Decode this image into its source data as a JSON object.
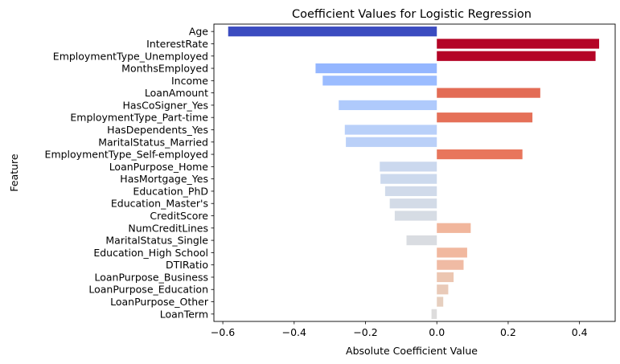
{
  "chart_data": {
    "type": "bar",
    "orientation": "horizontal",
    "title": "Coefficient Values for Logistic Regression",
    "xlabel": "Absolute Coefficient Value",
    "ylabel": "Feature",
    "xlim": [
      -0.625,
      0.5
    ],
    "xticks": [
      -0.6,
      -0.4,
      -0.2,
      0.0,
      0.2,
      0.4
    ],
    "xtick_labels": [
      "−0.6",
      "−0.4",
      "−0.2",
      "0.0",
      "0.2",
      "0.4"
    ],
    "grid": false,
    "colormap": "coolwarm",
    "categories": [
      "Age",
      "InterestRate",
      "EmploymentType_Unemployed",
      "MonthsEmployed",
      "Income",
      "LoanAmount",
      "HasCoSigner_Yes",
      "EmploymentType_Part-time",
      "HasDependents_Yes",
      "MaritalStatus_Married",
      "EmploymentType_Self-employed",
      "LoanPurpose_Home",
      "HasMortgage_Yes",
      "Education_PhD",
      "Education_Master's",
      "CreditScore",
      "NumCreditLines",
      "MaritalStatus_Single",
      "Education_High School",
      "DTIRatio",
      "LoanPurpose_Business",
      "LoanPurpose_Education",
      "LoanPurpose_Other",
      "LoanTerm"
    ],
    "values": [
      -0.585,
      0.455,
      0.445,
      -0.34,
      -0.32,
      0.29,
      -0.275,
      0.268,
      -0.258,
      -0.255,
      0.24,
      -0.16,
      -0.158,
      -0.145,
      -0.132,
      -0.118,
      0.095,
      -0.085,
      0.085,
      0.075,
      0.047,
      0.032,
      0.018,
      -0.015
    ],
    "colors": [
      "#3b4cc0",
      "#b40426",
      "#b40426",
      "#94b6ff",
      "#9bbcff",
      "#e36c55",
      "#afcafc",
      "#e57058",
      "#b9d0f9",
      "#bad0f8",
      "#e8765c",
      "#cbd8ee",
      "#ccd9ed",
      "#d0daea",
      "#d3dbe7",
      "#d6dce4",
      "#f1b69c",
      "#d9dce1",
      "#f1b89f",
      "#f0bba4",
      "#ecc6b1",
      "#e9cab8",
      "#e6cfbf",
      "#dddcdc"
    ]
  }
}
